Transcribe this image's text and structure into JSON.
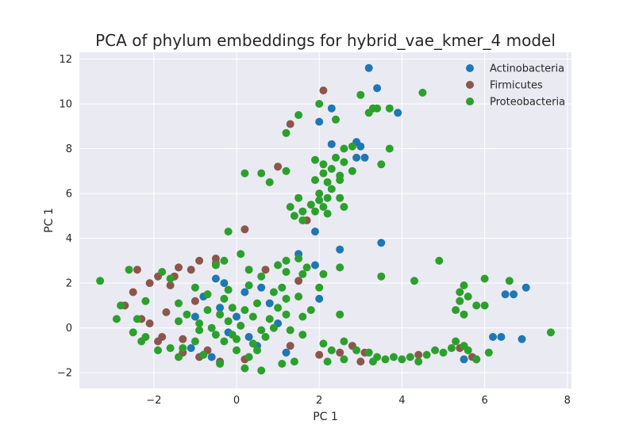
{
  "chart_data": {
    "type": "scatter",
    "title": "PCA of phylum embeddings for hybrid_vae_kmer_4 model",
    "xlabel": "PC 1",
    "ylabel": "PC 1",
    "xlim": [
      -3.8,
      8.1
    ],
    "ylim": [
      -2.7,
      12.3
    ],
    "xticks": [
      -2,
      0,
      2,
      4,
      6,
      8
    ],
    "yticks": [
      -2,
      0,
      2,
      4,
      6,
      8,
      10,
      12
    ],
    "xtick_labels": [
      "−2",
      "0",
      "2",
      "4",
      "6",
      "8"
    ],
    "ytick_labels": [
      "−2",
      "0",
      "2",
      "4",
      "6",
      "8",
      "10",
      "12"
    ],
    "grid": true,
    "legend_position": "top-right",
    "series": [
      {
        "name": "Actinobacteria",
        "color": "#1f77b4",
        "points": [
          [
            3.2,
            11.6
          ],
          [
            3.4,
            10.7
          ],
          [
            2.3,
            9.8
          ],
          [
            2.0,
            9.2
          ],
          [
            3.9,
            9.6
          ],
          [
            2.3,
            8.2
          ],
          [
            2.9,
            8.3
          ],
          [
            3.0,
            8.1
          ],
          [
            2.9,
            7.6
          ],
          [
            3.1,
            7.6
          ],
          [
            1.9,
            4.3
          ],
          [
            2.5,
            3.5
          ],
          [
            3.5,
            3.8
          ],
          [
            1.5,
            3.3
          ],
          [
            1.9,
            2.8
          ],
          [
            -0.5,
            2.2
          ],
          [
            -0.3,
            2.0
          ],
          [
            0.2,
            1.6
          ],
          [
            -0.8,
            1.4
          ],
          [
            0.8,
            1.1
          ],
          [
            -1.0,
            0.5
          ],
          [
            -0.2,
            -0.2
          ],
          [
            0.5,
            -0.8
          ],
          [
            1.0,
            0.2
          ],
          [
            -0.6,
            -1.3
          ],
          [
            2.0,
            1.3
          ],
          [
            6.2,
            -0.4
          ],
          [
            6.4,
            -0.4
          ],
          [
            6.5,
            1.5
          ],
          [
            6.7,
            1.5
          ],
          [
            6.9,
            -0.5
          ],
          [
            7.0,
            1.8
          ],
          [
            5.5,
            -1.4
          ],
          [
            5.8,
            -1.4
          ],
          [
            0.0,
            0.5
          ],
          [
            0.3,
            -0.4
          ],
          [
            -0.4,
            0.9
          ],
          [
            0.6,
            1.8
          ],
          [
            -1.1,
            -0.9
          ],
          [
            1.2,
            -1.1
          ]
        ]
      },
      {
        "name": "Firmicutes",
        "color": "#8c564b",
        "points": [
          [
            2.1,
            10.6
          ],
          [
            1.3,
            9.1
          ],
          [
            1.0,
            7.2
          ],
          [
            1.7,
            4.8
          ],
          [
            0.2,
            4.4
          ],
          [
            -2.4,
            2.6
          ],
          [
            -1.9,
            2.3
          ],
          [
            -1.4,
            2.7
          ],
          [
            -1.1,
            2.6
          ],
          [
            -0.5,
            3.1
          ],
          [
            -0.9,
            3.0
          ],
          [
            -2.1,
            2.0
          ],
          [
            -2.5,
            1.6
          ],
          [
            -1.6,
            1.9
          ],
          [
            -0.5,
            2.9
          ],
          [
            -1.7,
            0.7
          ],
          [
            -2.7,
            1.0
          ],
          [
            -2.1,
            0.2
          ],
          [
            -1.8,
            -0.4
          ],
          [
            -1.3,
            -0.5
          ],
          [
            -1.9,
            -0.6
          ],
          [
            -0.7,
            -1.0
          ],
          [
            -1.3,
            -1.1
          ],
          [
            -0.9,
            -1.3
          ],
          [
            -0.4,
            -1.5
          ],
          [
            0.2,
            -1.4
          ],
          [
            1.3,
            -0.8
          ],
          [
            2.0,
            -1.2
          ],
          [
            2.8,
            -0.8
          ],
          [
            3.1,
            -1.1
          ],
          [
            3.0,
            -1.5
          ],
          [
            4.4,
            -1.2
          ],
          [
            5.4,
            -0.9
          ],
          [
            5.7,
            -1.3
          ],
          [
            2.5,
            -1.1
          ],
          [
            -1.0,
            1.2
          ],
          [
            -1.5,
            2.3
          ],
          [
            -2.3,
            0.4
          ],
          [
            1.5,
            2.1
          ],
          [
            0.7,
            2.6
          ]
        ]
      },
      {
        "name": "Proteobacteria",
        "color": "#2ca02c",
        "points": [
          [
            3.0,
            10.4
          ],
          [
            2.0,
            10.0
          ],
          [
            3.3,
            9.8
          ],
          [
            3.4,
            9.8
          ],
          [
            3.7,
            9.8
          ],
          [
            4.5,
            10.5
          ],
          [
            1.5,
            9.5
          ],
          [
            2.4,
            9.3
          ],
          [
            3.2,
            9.6
          ],
          [
            1.2,
            8.7
          ],
          [
            2.6,
            8.0
          ],
          [
            2.8,
            8.1
          ],
          [
            3.7,
            8.0
          ],
          [
            3.5,
            7.3
          ],
          [
            1.9,
            7.5
          ],
          [
            2.1,
            7.3
          ],
          [
            2.4,
            7.6
          ],
          [
            2.6,
            7.4
          ],
          [
            2.8,
            7.0
          ],
          [
            2.1,
            6.9
          ],
          [
            2.3,
            7.1
          ],
          [
            2.5,
            6.8
          ],
          [
            1.9,
            6.6
          ],
          [
            2.2,
            6.5
          ],
          [
            2.5,
            6.6
          ],
          [
            2.0,
            6.0
          ],
          [
            2.3,
            6.2
          ],
          [
            2.0,
            5.7
          ],
          [
            2.2,
            5.8
          ],
          [
            2.5,
            5.8
          ],
          [
            1.8,
            5.5
          ],
          [
            2.1,
            5.4
          ],
          [
            1.6,
            5.2
          ],
          [
            1.9,
            5.2
          ],
          [
            2.6,
            5.4
          ],
          [
            1.3,
            5.4
          ],
          [
            1.4,
            5.0
          ],
          [
            1.6,
            4.8
          ],
          [
            1.2,
            7.0
          ],
          [
            0.6,
            6.9
          ],
          [
            0.8,
            6.5
          ],
          [
            0.2,
            6.9
          ],
          [
            -0.2,
            4.3
          ],
          [
            1.5,
            5.8
          ],
          [
            2.2,
            5.1
          ],
          [
            1.2,
            3.0
          ],
          [
            1.5,
            3.1
          ],
          [
            1.7,
            2.7
          ],
          [
            1.2,
            2.5
          ],
          [
            2.1,
            2.4
          ],
          [
            2.5,
            2.7
          ],
          [
            3.5,
            2.3
          ],
          [
            4.3,
            2.1
          ],
          [
            4.9,
            3.0
          ],
          [
            6.0,
            2.2
          ],
          [
            6.6,
            2.1
          ],
          [
            5.5,
            1.9
          ],
          [
            5.4,
            1.6
          ],
          [
            5.6,
            1.4
          ],
          [
            5.4,
            1.2
          ],
          [
            5.8,
            1.0
          ],
          [
            6.0,
            1.0
          ],
          [
            5.3,
            0.8
          ],
          [
            5.5,
            0.6
          ],
          [
            2.5,
            0.6
          ],
          [
            -3.3,
            2.1
          ],
          [
            -2.6,
            2.6
          ],
          [
            -1.8,
            2.5
          ],
          [
            -1.6,
            2.2
          ],
          [
            -2.2,
            1.2
          ],
          [
            -2.8,
            1.0
          ],
          [
            -2.9,
            0.4
          ],
          [
            -2.4,
            0.4
          ],
          [
            -2.5,
            -0.2
          ],
          [
            -2.3,
            -0.6
          ],
          [
            -2.2,
            -0.4
          ],
          [
            -1.9,
            -1.0
          ],
          [
            -1.4,
            -1.3
          ],
          [
            -1.3,
            -0.9
          ],
          [
            -1.0,
            -0.6
          ],
          [
            -0.9,
            0.2
          ],
          [
            -1.2,
            0.6
          ],
          [
            -1.4,
            1.1
          ],
          [
            -0.7,
            1.5
          ],
          [
            -0.3,
            1.3
          ],
          [
            -0.1,
            0.9
          ],
          [
            -0.6,
            0.0
          ],
          [
            -0.3,
            -0.6
          ],
          [
            0.0,
            -1.0
          ],
          [
            0.3,
            -1.3
          ],
          [
            0.4,
            -0.7
          ],
          [
            0.6,
            -0.1
          ],
          [
            0.8,
            0.4
          ],
          [
            1.0,
            0.9
          ],
          [
            1.2,
            1.3
          ],
          [
            0.9,
            1.6
          ],
          [
            0.6,
            2.3
          ],
          [
            0.3,
            2.6
          ],
          [
            0.1,
            3.3
          ],
          [
            -0.3,
            3.0
          ],
          [
            -0.5,
            2.8
          ],
          [
            1.0,
            2.8
          ],
          [
            1.6,
            2.4
          ],
          [
            2.0,
            1.8
          ],
          [
            1.5,
            1.4
          ],
          [
            1.8,
            0.8
          ],
          [
            1.6,
            0.5
          ],
          [
            1.3,
            -0.1
          ],
          [
            1.6,
            -0.3
          ],
          [
            2.1,
            -0.7
          ],
          [
            2.3,
            -1.0
          ],
          [
            2.6,
            -0.6
          ],
          [
            2.9,
            -1.0
          ],
          [
            3.2,
            -1.1
          ],
          [
            3.4,
            -1.3
          ],
          [
            3.6,
            -1.4
          ],
          [
            3.8,
            -1.3
          ],
          [
            4.0,
            -1.4
          ],
          [
            4.2,
            -1.3
          ],
          [
            4.4,
            -1.5
          ],
          [
            4.6,
            -1.2
          ],
          [
            4.8,
            -1.0
          ],
          [
            5.0,
            -1.1
          ],
          [
            5.2,
            -0.9
          ],
          [
            5.3,
            -0.6
          ],
          [
            5.5,
            -0.8
          ],
          [
            5.6,
            -1.0
          ],
          [
            5.8,
            -1.4
          ],
          [
            6.1,
            -1.1
          ],
          [
            7.6,
            -0.2
          ],
          [
            1.1,
            -1.6
          ],
          [
            1.4,
            -1.5
          ],
          [
            0.6,
            -1.9
          ],
          [
            0.2,
            -1.8
          ],
          [
            -0.4,
            -1.6
          ],
          [
            -0.8,
            -1.2
          ],
          [
            -1.6,
            -0.9
          ],
          [
            2.2,
            -1.5
          ],
          [
            2.6,
            -1.4
          ],
          [
            3.3,
            -1.5
          ],
          [
            -0.2,
            0.3
          ],
          [
            0.1,
            0.1
          ],
          [
            0.4,
            0.5
          ],
          [
            -0.5,
            -0.3
          ],
          [
            0.7,
            -0.4
          ],
          [
            -0.1,
            -0.3
          ],
          [
            0.2,
            0.8
          ],
          [
            -0.4,
            0.6
          ],
          [
            0.9,
            0.0
          ],
          [
            -0.7,
            0.8
          ],
          [
            0.5,
            1.1
          ],
          [
            -0.2,
            1.7
          ],
          [
            0.3,
            1.9
          ],
          [
            -1.0,
            1.8
          ],
          [
            1.1,
            1.8
          ],
          [
            0.0,
            -0.5
          ],
          [
            0.5,
            -1.0
          ],
          [
            -0.9,
            -0.1
          ],
          [
            1.2,
            0.6
          ],
          [
            -1.4,
            0.3
          ]
        ]
      }
    ]
  }
}
